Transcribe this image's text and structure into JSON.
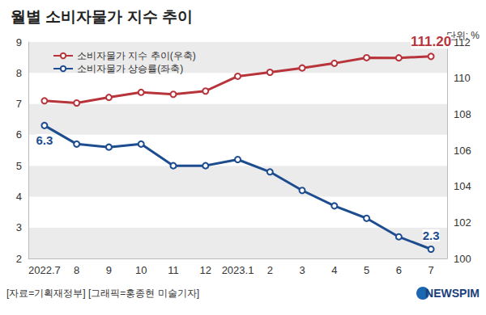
{
  "chart_data": {
    "type": "line",
    "title": "월별 소비자물가 지수 추이",
    "annotations": [
      "단위: %",
      "[자료=기획재정부] [그래픽=홍종현 미술기자]",
      "NEWSPIM"
    ],
    "categories": [
      "2022.7",
      "8",
      "9",
      "10",
      "11",
      "12",
      "2023.1",
      "2",
      "3",
      "4",
      "5",
      "6",
      "7"
    ],
    "series": [
      {
        "name": "소비자물가 지수 추이(우축)",
        "axis": "y2",
        "color": "#b8343b",
        "marker": "open_circle",
        "values": [
          108.74,
          108.62,
          108.93,
          109.21,
          109.1,
          109.28,
          110.1,
          110.32,
          110.56,
          110.82,
          111.13,
          111.12,
          111.2
        ],
        "value_labels": [
          null,
          null,
          null,
          null,
          null,
          null,
          null,
          null,
          null,
          null,
          null,
          null,
          "111.20"
        ]
      },
      {
        "name": "소비자물가 상승률(좌축)",
        "color": "#1d4d8f",
        "marker": "open_circle",
        "values": [
          6.3,
          5.7,
          5.6,
          5.7,
          5.0,
          5.0,
          5.2,
          4.8,
          4.2,
          3.7,
          3.3,
          2.7,
          2.3
        ],
        "value_labels": [
          "6.3",
          null,
          null,
          null,
          null,
          null,
          null,
          null,
          null,
          null,
          null,
          null,
          "2.3"
        ]
      }
    ],
    "ylim": [
      2,
      9
    ],
    "yticks": [
      2,
      3,
      4,
      5,
      6,
      7,
      8,
      9
    ],
    "y2lim": [
      100,
      112
    ],
    "y2ticks": [
      100,
      102,
      104,
      106,
      108,
      110,
      112
    ],
    "grid": true,
    "legend": "upper left"
  }
}
